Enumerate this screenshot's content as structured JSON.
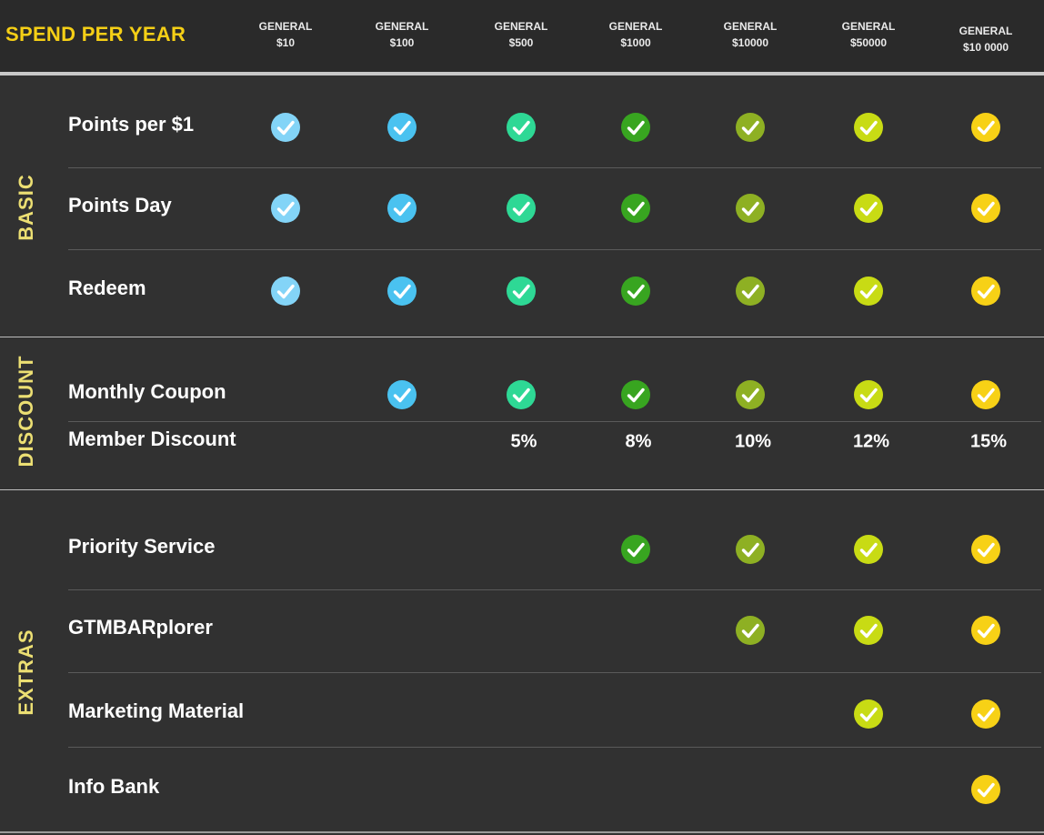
{
  "heading": "SPEND PER YEAR",
  "tiers": [
    {
      "label": "GENERAL",
      "amount": "$10",
      "color": "#83d4f7"
    },
    {
      "label": "GENERAL",
      "amount": "$100",
      "color": "#4ac2f0"
    },
    {
      "label": "GENERAL",
      "amount": "$500",
      "color": "#2ed895"
    },
    {
      "label": "GENERAL",
      "amount": "$1000",
      "color": "#38a520"
    },
    {
      "label": "GENERAL",
      "amount": "$10000",
      "color": "#8eb023"
    },
    {
      "label": "GENERAL",
      "amount": "$50000",
      "color": "#c8db14"
    },
    {
      "label": "GENERAL",
      "amount": "$10 0000",
      "color": "#f7d116"
    }
  ],
  "sections": [
    {
      "name": "BASIC",
      "rows": [
        {
          "feature": "Points per $1",
          "cells": [
            true,
            true,
            true,
            true,
            true,
            true,
            true
          ]
        },
        {
          "feature": "Points Day",
          "cells": [
            true,
            true,
            true,
            true,
            true,
            true,
            true
          ]
        },
        {
          "feature": "Redeem",
          "cells": [
            true,
            true,
            true,
            true,
            true,
            true,
            true
          ]
        }
      ]
    },
    {
      "name": "DISCOUNT",
      "rows": [
        {
          "feature": "Monthly Coupon",
          "cells": [
            false,
            true,
            true,
            true,
            true,
            true,
            true
          ]
        },
        {
          "feature": "Member Discount",
          "cells": [
            "",
            "",
            "5%",
            "8%",
            "10%",
            "12%",
            "15%"
          ]
        }
      ]
    },
    {
      "name": "EXTRAS",
      "rows": [
        {
          "feature": "Priority Service",
          "cells": [
            false,
            false,
            false,
            true,
            true,
            true,
            true
          ]
        },
        {
          "feature": "GTMBARplorer",
          "cells": [
            false,
            false,
            false,
            false,
            true,
            true,
            true
          ]
        },
        {
          "feature": "Marketing Material",
          "cells": [
            false,
            false,
            false,
            false,
            false,
            true,
            true
          ]
        },
        {
          "feature": "Info Bank",
          "cells": [
            false,
            false,
            false,
            false,
            false,
            false,
            true
          ]
        }
      ]
    }
  ]
}
